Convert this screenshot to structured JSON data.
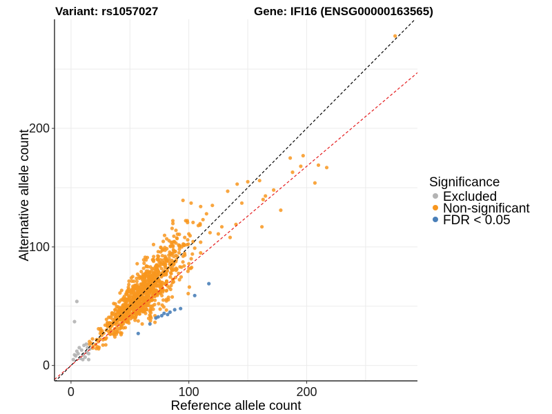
{
  "chart_data": {
    "type": "scatter",
    "title_left": "Variant: rs1057027",
    "title_right": "Gene: IFI16 (ENSG00000163565)",
    "xlabel": "Reference allele count",
    "ylabel": "Alternative allele count",
    "xlim": [
      -14,
      294
    ],
    "ylim": [
      -13,
      292
    ],
    "x_ticks": [
      0,
      100,
      200
    ],
    "y_ticks": [
      0,
      100,
      200
    ],
    "grid": true,
    "legend": {
      "title": "Significance",
      "position": "right",
      "entries": [
        {
          "label": "Excluded",
          "color": "#b3b3b3"
        },
        {
          "label": "Non-significant",
          "color": "#f8961e"
        },
        {
          "label": "FDR < 0.05",
          "color": "#4a7fb8"
        }
      ]
    },
    "reference_lines": [
      {
        "name": "identity",
        "slope": 1.0,
        "intercept": 0,
        "color": "#000000",
        "dash": true
      },
      {
        "name": "fit",
        "slope": 0.84,
        "intercept": 0,
        "color": "#e41a1c",
        "dash": true
      }
    ],
    "series": [
      {
        "name": "Excluded",
        "color": "#b3b3b3",
        "points": [
          [
            5,
            54
          ],
          [
            3,
            37
          ],
          [
            2,
            5
          ],
          [
            4,
            8
          ],
          [
            5,
            12
          ],
          [
            6,
            10
          ],
          [
            8,
            6
          ],
          [
            10,
            9
          ],
          [
            9,
            13
          ],
          [
            12,
            7
          ],
          [
            13,
            11
          ],
          [
            14,
            15
          ],
          [
            15,
            10
          ],
          [
            16,
            14
          ],
          [
            7,
            15
          ],
          [
            11,
            17
          ],
          [
            13,
            18
          ],
          [
            15,
            5
          ],
          [
            10,
            5
          ],
          [
            3,
            9
          ]
        ]
      },
      {
        "name": "FDR < 0.05",
        "color": "#4a7fb8",
        "points": [
          [
            117,
            69
          ],
          [
            105,
            59
          ],
          [
            93,
            48
          ],
          [
            84,
            45
          ],
          [
            77,
            42
          ],
          [
            72,
            40
          ],
          [
            57,
            27
          ],
          [
            67,
            35
          ],
          [
            82,
            43
          ],
          [
            88,
            47
          ],
          [
            79,
            44
          ],
          [
            74,
            41
          ]
        ]
      },
      {
        "name": "Non-significant",
        "color": "#f8961e",
        "outliers": [
          [
            275,
            278
          ],
          [
            217,
            167
          ],
          [
            210,
            169
          ],
          [
            207,
            154
          ],
          [
            197,
            177
          ],
          [
            195,
            168
          ],
          [
            188,
            163
          ],
          [
            186,
            175
          ],
          [
            178,
            131
          ],
          [
            172,
            148
          ],
          [
            165,
            143
          ],
          [
            163,
            140
          ],
          [
            160,
            156
          ],
          [
            162,
            117
          ],
          [
            150,
            155
          ],
          [
            145,
            137
          ],
          [
            140,
            119
          ],
          [
            141,
            153
          ],
          [
            135,
            108
          ],
          [
            133,
            147
          ],
          [
            128,
            117
          ],
          [
            125,
            111
          ],
          [
            120,
            135
          ],
          [
            118,
            112
          ],
          [
            115,
            128
          ],
          [
            112,
            123
          ],
          [
            110,
            104
          ],
          [
            108,
            118
          ],
          [
            105,
            99
          ],
          [
            103,
            94
          ],
          [
            100,
            111
          ],
          [
            96,
            102
          ],
          [
            92,
            98
          ],
          [
            90,
            107
          ],
          [
            88,
            96
          ],
          [
            86,
            104
          ],
          [
            85,
            93
          ],
          [
            83,
            88
          ],
          [
            80,
            85
          ],
          [
            96,
            84
          ],
          [
            102,
            90
          ],
          [
            110,
            95
          ],
          [
            74,
            96
          ],
          [
            70,
            102
          ],
          [
            94,
            100
          ],
          [
            99,
            106
          ]
        ],
        "cluster": {
          "n": 950,
          "x_range": [
            10,
            110
          ],
          "ratio_mean": 1.0,
          "ratio_sd": 0.17
        }
      }
    ]
  }
}
